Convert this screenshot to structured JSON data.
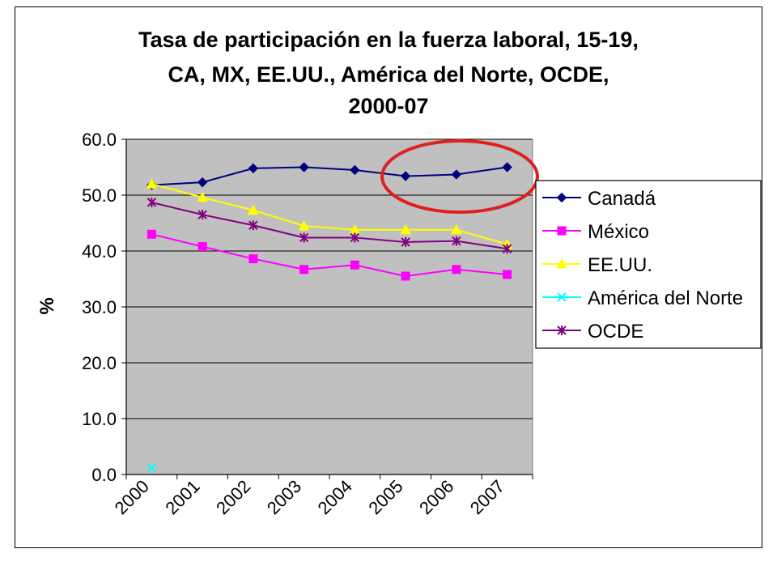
{
  "chart_data": {
    "type": "line",
    "title_lines": [
      "Tasa de participación en la fuerza laboral, 15-19,",
      "CA, MX, EE.UU., América del Norte, OCDE,",
      "2000-07"
    ],
    "ylabel": "%",
    "xlabel": "",
    "ylim": [
      0,
      60
    ],
    "y_ticks": [
      "0.0",
      "10.0",
      "20.0",
      "30.0",
      "40.0",
      "50.0",
      "60.0"
    ],
    "categories": [
      "2000",
      "2001",
      "2002",
      "2003",
      "2004",
      "2005",
      "2006",
      "2007"
    ],
    "grid": "horizontal",
    "plot_background": "#c0c0c0",
    "legend_position": "right",
    "series": [
      {
        "name": "Canadá",
        "color": "#000080",
        "marker": "diamond",
        "values": [
          51.8,
          52.3,
          54.8,
          55.0,
          54.5,
          53.4,
          53.7,
          55.0
        ]
      },
      {
        "name": "México",
        "color": "#ff00ff",
        "marker": "square",
        "values": [
          43.0,
          40.8,
          38.6,
          36.7,
          37.5,
          35.5,
          36.7,
          35.8
        ]
      },
      {
        "name": "EE.UU.",
        "color": "#ffff00",
        "marker": "triangle",
        "values": [
          52.0,
          49.6,
          47.3,
          44.5,
          43.8,
          43.8,
          43.8,
          41.2
        ]
      },
      {
        "name": "América del Norte",
        "color": "#00ffff",
        "marker": "x",
        "values": [
          1.2,
          null,
          null,
          null,
          null,
          null,
          null,
          null
        ]
      },
      {
        "name": "OCDE",
        "color": "#800080",
        "marker": "star",
        "values": [
          48.7,
          46.5,
          44.6,
          42.4,
          42.4,
          41.6,
          41.8,
          40.4
        ]
      }
    ],
    "annotation": {
      "shape": "ellipse",
      "color": "#e02020",
      "around_categories": [
        "2005",
        "2007"
      ]
    }
  }
}
